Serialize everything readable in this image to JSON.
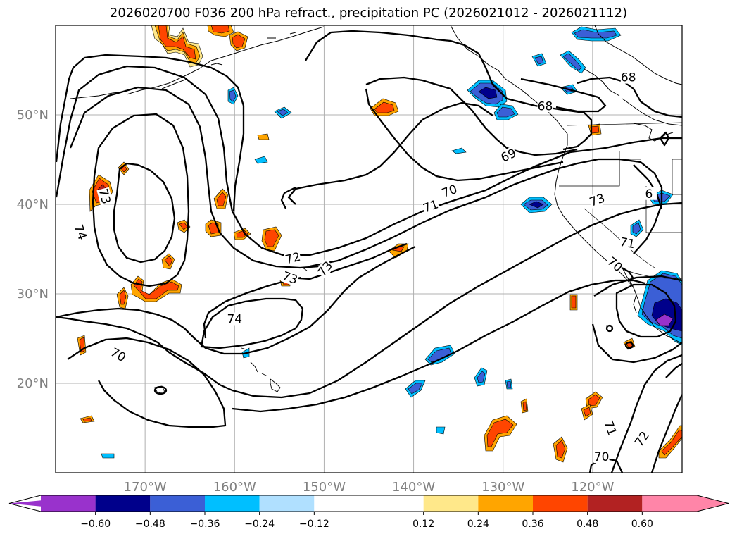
{
  "chart_data": {
    "type": "contour",
    "title": "2026020700 F036 200 hPa refract., precipitation PC (2026021012 - 2026021112)",
    "map": {
      "lon_range": [
        -180,
        -110
      ],
      "lat_range": [
        10,
        60
      ],
      "lon_ticks": [
        -170,
        -160,
        -150,
        -140,
        -130,
        -120
      ],
      "lon_tick_labels": [
        "170°W",
        "160°W",
        "150°W",
        "140°W",
        "130°W",
        "120°W"
      ],
      "lat_ticks": [
        20,
        30,
        40,
        50
      ],
      "lat_tick_labels": [
        "20°N",
        "30°N",
        "40°N",
        "50°N"
      ],
      "grid": true,
      "tick_label_color": "#808080"
    },
    "contour_labels": [
      {
        "text": "74",
        "lon": -177.2,
        "lat": 36.9,
        "rotation": 70
      },
      {
        "text": "73",
        "lon": -174.5,
        "lat": 40.9,
        "rotation": 75
      },
      {
        "text": "72",
        "lon": -153.5,
        "lat": 34.0,
        "rotation": -15
      },
      {
        "text": "73",
        "lon": -153.8,
        "lat": 31.8,
        "rotation": 20
      },
      {
        "text": "73",
        "lon": -149.9,
        "lat": 32.8,
        "rotation": -50
      },
      {
        "text": "74",
        "lon": -160.0,
        "lat": 27.2,
        "rotation": 0
      },
      {
        "text": "70",
        "lon": -173.0,
        "lat": 23.2,
        "rotation": 30
      },
      {
        "text": "71",
        "lon": -138.1,
        "lat": 39.8,
        "rotation": -20
      },
      {
        "text": "70",
        "lon": -136.0,
        "lat": 41.5,
        "rotation": -20
      },
      {
        "text": "69",
        "lon": -129.4,
        "lat": 45.5,
        "rotation": -25
      },
      {
        "text": "68",
        "lon": -125.3,
        "lat": 51.0,
        "rotation": 0
      },
      {
        "text": "68",
        "lon": -116.0,
        "lat": 54.2,
        "rotation": 0
      },
      {
        "text": "73",
        "lon": -119.5,
        "lat": 40.5,
        "rotation": -20
      },
      {
        "text": "71",
        "lon": -116.1,
        "lat": 35.7,
        "rotation": 10
      },
      {
        "text": "70",
        "lon": -117.5,
        "lat": 33.3,
        "rotation": 40
      },
      {
        "text": "71",
        "lon": -118.0,
        "lat": 15.0,
        "rotation": 70
      },
      {
        "text": "72",
        "lon": -114.5,
        "lat": 13.8,
        "rotation": -55
      },
      {
        "text": "70",
        "lon": -119.0,
        "lat": 11.8,
        "rotation": 0
      },
      {
        "text": "6",
        "lon": -113.7,
        "lat": 41.2,
        "rotation": 0
      }
    ],
    "colorbar": {
      "levels": [
        -0.72,
        -0.6,
        -0.48,
        -0.36,
        -0.24,
        -0.12,
        0.12,
        0.24,
        0.36,
        0.48,
        0.6,
        0.72
      ],
      "tick_values": [
        -0.6,
        -0.48,
        -0.36,
        -0.24,
        -0.12,
        0.12,
        0.24,
        0.36,
        0.48,
        0.6
      ],
      "tick_labels": [
        "−0.60",
        "−0.48",
        "−0.36",
        "−0.24",
        "−0.12",
        "0.12",
        "0.24",
        "0.36",
        "0.48",
        "0.60"
      ],
      "colors": [
        "#9932cc",
        "#00008b",
        "#3b5fd6",
        "#00bfff",
        "#b0e0ff",
        "#ffffff",
        "#ffe88a",
        "#ffa500",
        "#ff4500",
        "#b22222",
        "#ff85a8"
      ],
      "extend": "both",
      "orientation": "horizontal"
    }
  }
}
